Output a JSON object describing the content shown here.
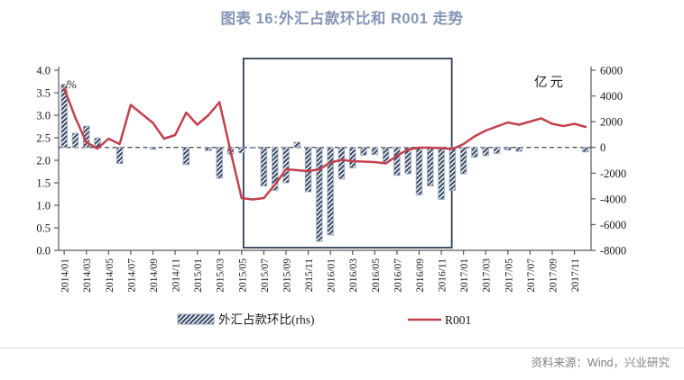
{
  "title": "图表 16:外汇占款环比和 R001 走势",
  "source": "资料来源：Wind，兴业研究",
  "legend": {
    "bar_label": "外汇占款环比(rhs)",
    "line_label": "R001"
  },
  "chart_data": {
    "type": "combo-bar-line",
    "title": "图表 16:外汇占款环比和 R001 走势",
    "left_axis": {
      "label": "%",
      "min": 0.0,
      "max": 4.0,
      "tick_values": [
        4.0,
        3.5,
        3.0,
        2.5,
        2.0,
        1.5,
        1.0,
        0.5,
        0.0
      ],
      "tick_labels": [
        "4.0",
        "3.5",
        "3.0",
        "2.5",
        "2.0",
        "1.5",
        "1.0",
        "0.5",
        "0.0"
      ]
    },
    "right_axis": {
      "label": "亿元",
      "min": -8000,
      "max": 6000,
      "tick_values": [
        6000,
        4000,
        2000,
        0,
        -2000,
        -4000,
        -6000,
        -8000
      ],
      "tick_labels": [
        "6000",
        "4000",
        "2000",
        "0",
        "-2000",
        "-4000",
        "-6000",
        "-8000"
      ]
    },
    "x_tick_every": 2,
    "categories": [
      "2014/01",
      "2014/02",
      "2014/03",
      "2014/04",
      "2014/05",
      "2014/06",
      "2014/07",
      "2014/08",
      "2014/09",
      "2014/10",
      "2014/11",
      "2014/12",
      "2015/01",
      "2015/02",
      "2015/03",
      "2015/04",
      "2015/05",
      "2015/06",
      "2015/07",
      "2015/08",
      "2015/09",
      "2015/10",
      "2015/11",
      "2015/12",
      "2016/01",
      "2016/02",
      "2016/03",
      "2016/04",
      "2016/05",
      "2016/06",
      "2016/07",
      "2016/08",
      "2016/09",
      "2016/10",
      "2016/11",
      "2016/12",
      "2017/01",
      "2017/02",
      "2017/03",
      "2017/04",
      "2017/05",
      "2017/06",
      "2017/07",
      "2017/08",
      "2017/09",
      "2017/10",
      "2017/11",
      "2017/12"
    ],
    "series": [
      {
        "name": "外汇占款环比(rhs)",
        "type": "bar",
        "axis": "right",
        "unit": "亿元",
        "values": [
          4900,
          1100,
          1650,
          730,
          0,
          -1250,
          0,
          0,
          -150,
          0,
          0,
          -1330,
          0,
          -250,
          -2400,
          -510,
          -420,
          -60,
          -3000,
          -3340,
          -2750,
          400,
          -3450,
          -7300,
          -6800,
          -2450,
          -1590,
          -600,
          -550,
          -1120,
          -2170,
          -2050,
          -3690,
          -2990,
          -4040,
          -3340,
          -2050,
          -770,
          -650,
          -470,
          -200,
          -300,
          0,
          0,
          0,
          0,
          0,
          -350
        ]
      },
      {
        "name": "R001",
        "type": "line",
        "axis": "left",
        "unit": "%",
        "values": [
          3.6,
          2.95,
          2.4,
          2.26,
          2.48,
          2.36,
          3.23,
          3.03,
          2.83,
          2.48,
          2.56,
          3.06,
          2.79,
          3.0,
          3.29,
          2.2,
          1.16,
          1.13,
          1.16,
          1.46,
          1.8,
          1.78,
          1.76,
          1.8,
          1.95,
          2.01,
          1.98,
          1.97,
          1.96,
          1.93,
          2.1,
          2.24,
          2.28,
          2.28,
          2.27,
          2.25,
          2.36,
          2.53,
          2.66,
          2.75,
          2.84,
          2.79,
          2.86,
          2.93,
          2.81,
          2.76,
          2.81,
          2.74
        ]
      }
    ],
    "highlight_box": {
      "from": "2015/05",
      "to": "2017/01"
    },
    "zero_line": {
      "axis": "right",
      "value": 0,
      "style": "dashed"
    },
    "grid": false,
    "legend_position": "bottom",
    "colors": {
      "line": "#C2404E",
      "bar": "#3A4B66",
      "bar_outline": "#96A5BC",
      "box": "#2E3F5A",
      "zero_line": "#404040",
      "axis": "#595959",
      "title": "#8495B5",
      "source": "#808080"
    }
  }
}
